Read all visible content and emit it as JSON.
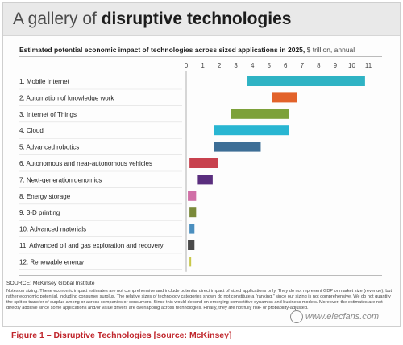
{
  "header": {
    "title_prefix": "A gallery of ",
    "title_bold": "disruptive technologies"
  },
  "subtitle": {
    "main": "Estimated potential economic impact of technologies across sized applications in 2025,",
    "unit": " $ trillion, annual"
  },
  "footer": {
    "source": "SOURCE: McKinsey Global Institute",
    "notes": "Notes on sizing: These economic impact estimates are not comprehensive and include potential direct impact of sized applications only. They do not represent GDP or market size (revenue), but rather economic potential, including consumer surplus. The relative sizes of technology categories shown do not constitute a “ranking,” since our sizing is not comprehensive. We do not quantify the split or transfer of surplus among or across companies or consumers. Since this would depend on emerging competitive dynamics and business models. Moreover, the estimates are not directly additive since some applications and/or value drivers are overlapping across technologies. Finally, they are not fully risk- or probability-adjusted.",
    "caption_main": "Figure 1 – Disruptive Technologies   [source: ",
    "caption_source": "McKinsey",
    "caption_end": "]",
    "watermark": "www.elecfans.com"
  },
  "chart_data": {
    "type": "bar",
    "orientation": "horizontal-range",
    "title": "Estimated potential economic impact of technologies across sized applications in 2025, $ trillion, annual",
    "xlim": [
      0,
      11
    ],
    "x_ticks": [
      0,
      1,
      2,
      3,
      4,
      5,
      6,
      7,
      8,
      9,
      10,
      11
    ],
    "grid": false,
    "categories": [
      "1.  Mobile Internet",
      "2.  Automation of knowledge work",
      "3.  Internet of Things",
      "4.  Cloud",
      "5.  Advanced robotics",
      "6.  Autonomous and near-autonomous vehicles",
      "7.  Next-generation genomics",
      "8.  Energy storage",
      "9.  3-D printing",
      "10.  Advanced materials",
      "11.  Advanced oil and gas exploration and recovery",
      "12.  Renewable energy"
    ],
    "ranges": [
      [
        3.7,
        10.8
      ],
      [
        5.2,
        6.7
      ],
      [
        2.7,
        6.2
      ],
      [
        1.7,
        6.2
      ],
      [
        1.7,
        4.5
      ],
      [
        0.2,
        1.9
      ],
      [
        0.7,
        1.6
      ],
      [
        0.1,
        0.6
      ],
      [
        0.2,
        0.6
      ],
      [
        0.2,
        0.5
      ],
      [
        0.1,
        0.5
      ],
      [
        0.2,
        0.3
      ]
    ],
    "colors": [
      "#2fb3c4",
      "#e2622a",
      "#7da13a",
      "#29b6d2",
      "#3d6e96",
      "#c8414e",
      "#5a2e7e",
      "#d06fa6",
      "#7b8a3a",
      "#4b8fbf",
      "#4a4a4a",
      "#c9c84a"
    ]
  }
}
